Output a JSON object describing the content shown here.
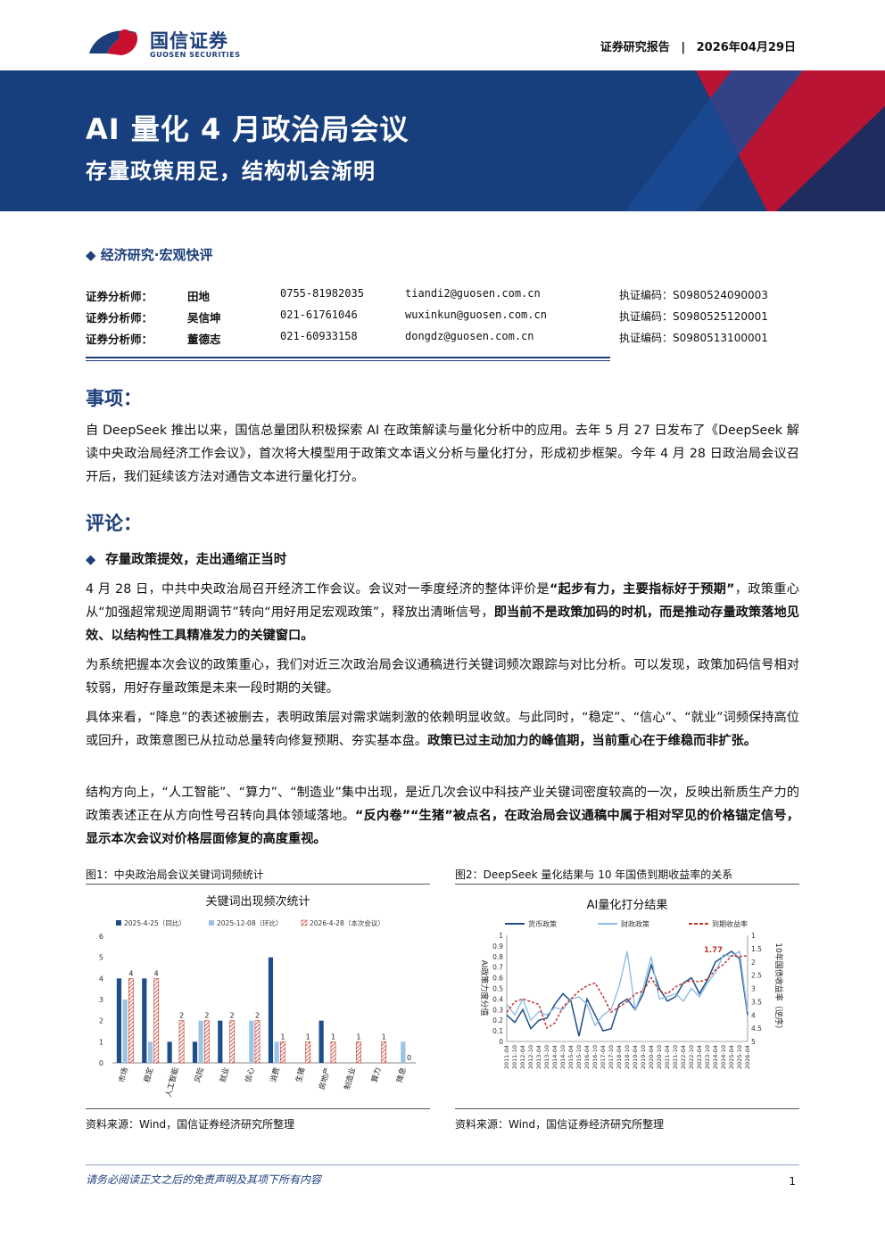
{
  "header": {
    "brand_cn": "国信证券",
    "brand_en": "GUOSEN SECURITIES",
    "report_type": "证券研究报告",
    "separator": "|",
    "date": "2026年04月29日"
  },
  "banner": {
    "title": "AI 量化 4 月政治局会议",
    "subtitle": "存量政策用足，结构机会渐明"
  },
  "section_tag": "◆ 经济研究·宏观快评",
  "analysts": [
    {
      "label": "证券分析师：",
      "name": "田地",
      "tel": "0755-81982035",
      "email": "tiandi2@guosen.com.cn",
      "cert": "执证编码：S0980524090003"
    },
    {
      "label": "证券分析师：",
      "name": "吴信坤",
      "tel": "021-61761046",
      "email": "wuxinkun@guosen.com.cn",
      "cert": "执证编码：S0980525120001"
    },
    {
      "label": "证券分析师：",
      "name": "董德志",
      "tel": "021-60933158",
      "email": "dongdz@guosen.com.cn",
      "cert": "执证编码：S0980513100001"
    }
  ],
  "sections": {
    "matter_heading": "事项：",
    "matter_text": "自 DeepSeek 推出以来，国信总量团队积极探索 AI 在政策解读与量化分析中的应用。去年 5 月 27 日发布了《DeepSeek 解读中央政治局经济工作会议》，首次将大模型用于政策文本语义分析与量化打分，形成初步框架。今年 4 月 28 日政治局会议召开后，我们延续该方法对通告文本进行量化打分。",
    "comment_heading": "评论：",
    "bullet1": "存量政策提效，走出通缩正当时",
    "p1_a": "4 月 28 日，中共中央政治局召开经济工作会议。会议对一季度经济的整体评价是",
    "p1_b": "“起步有力，主要指标好于预期”",
    "p1_c": "，政策重心从“加强超常规逆周期调节”转向“用好用足宏观政策”，释放出清晰信号，",
    "p1_d": "即当前不是政策加码的时机，而是推动存量政策落地见效、以结构性工具精准发力的关键窗口。",
    "p2": "为系统把握本次会议的政策重心，我们对近三次政治局会议通稿进行关键词频次跟踪与对比分析。可以发现，政策加码信号相对较弱，用好存量政策是未来一段时期的关键。",
    "p3_a": "具体来看，“降息”的表述被删去，表明政策层对需求端刺激的依赖明显收敛。与此同时，“稳定”、“信心”、“就业”词频保持高位或回升，政策意图已从拉动总量转向修复预期、夯实基本盘。",
    "p3_b": "政策已过主动加力的峰值期，当前重心在于维稳而非扩张。",
    "p4_a": "结构方向上，“人工智能”、“算力”、“制造业”集中出现，是近几次会议中科技产业关键词密度较高的一次，反映出新质生产力的政策表述正在从方向性号召转向具体领域落地。",
    "p4_b": "“反内卷”“生猪”被点名，在政治局会议通稿中属于相对罕见的价格锚定信号，显示本次会议对价格层面修复的高度重视。"
  },
  "figure1": {
    "caption": "图1：中央政治局会议关键词词频统计",
    "source": "资料来源：Wind，国信证券经济研究所整理",
    "colors": {
      "s1": "#1d4e89",
      "s2": "#9cc3e6",
      "s3": "#c0392b"
    }
  },
  "figure2": {
    "caption": "图2：DeepSeek 量化结果与 10 年国债到期收益率的关系",
    "source": "资料来源：Wind，国信证券经济研究所整理",
    "colors": {
      "s1": "#1d4e89",
      "s2": "#8fbde6",
      "s3": "#c0392b"
    }
  },
  "chart_data": [
    {
      "type": "bar",
      "title": "关键词出现频次统计",
      "categories": [
        "市场",
        "稳定",
        "人工智能",
        "风险",
        "就业",
        "信心",
        "消费",
        "生猪",
        "房地产",
        "制造业",
        "算力",
        "降息"
      ],
      "series": [
        {
          "name": "2025-4-25（同比）",
          "values": [
            4,
            4,
            1,
            1,
            2,
            0,
            5,
            0,
            2,
            0,
            0,
            0
          ]
        },
        {
          "name": "2025-12-08（环比）",
          "values": [
            3,
            1,
            0,
            2,
            0,
            2,
            1,
            0,
            0,
            0,
            0,
            1
          ]
        },
        {
          "name": "2026-4-28（本次会议）",
          "values": [
            4,
            4,
            2,
            2,
            2,
            2,
            1,
            1,
            1,
            1,
            1,
            0
          ]
        }
      ],
      "data_labels": [
        4,
        4,
        2,
        2,
        2,
        2,
        1,
        1,
        1,
        1,
        1,
        0
      ],
      "ylim": [
        0,
        6
      ],
      "yticks": [
        "0",
        "1",
        "2",
        "3",
        "4",
        "5",
        "6"
      ],
      "legend": "top"
    },
    {
      "type": "line",
      "title": "AI量化打分结果",
      "ylabel_left": "AI政策力度分值",
      "ylabel_right": "10年国债收益率（逆序）",
      "ylim_left": [
        0,
        1
      ],
      "ylim_right": [
        1,
        5
      ],
      "right_axis_inverted": true,
      "yticks_left": [
        "0",
        "0.1",
        "0.2",
        "0.3",
        "0.4",
        "0.5",
        "0.6",
        "0.7",
        "0.8",
        "0.9",
        "1"
      ],
      "yticks_right": [
        "1",
        "1.5",
        "2",
        "2.5",
        "3",
        "3.5",
        "4",
        "4.5",
        "5"
      ],
      "x": [
        "2011-04",
        "2011-10",
        "2012-04",
        "2012-10",
        "2013-04",
        "2013-10",
        "2014-04",
        "2014-10",
        "2015-04",
        "2015-10",
        "2016-04",
        "2016-10",
        "2017-04",
        "2017-10",
        "2018-04",
        "2018-10",
        "2019-04",
        "2019-10",
        "2020-04",
        "2020-10",
        "2021-04",
        "2021-10",
        "2022-04",
        "2022-10",
        "2023-04",
        "2023-10",
        "2024-04",
        "2024-10",
        "2025-04",
        "2025-10",
        "2026-04"
      ],
      "series": [
        {
          "name": "货币政策",
          "values": [
            0.25,
            0.18,
            0.3,
            0.12,
            0.2,
            0.22,
            0.35,
            0.45,
            0.38,
            0.05,
            0.4,
            0.25,
            0.1,
            0.12,
            0.35,
            0.4,
            0.3,
            0.45,
            0.72,
            0.5,
            0.38,
            0.42,
            0.55,
            0.6,
            0.45,
            0.58,
            0.75,
            0.8,
            0.85,
            0.78,
            0.25
          ]
        },
        {
          "name": "财政政策",
          "values": [
            0.35,
            0.25,
            0.4,
            0.2,
            0.28,
            0.25,
            0.32,
            0.3,
            0.4,
            0.42,
            0.35,
            0.15,
            0.25,
            0.3,
            0.52,
            0.85,
            0.3,
            0.5,
            0.8,
            0.4,
            0.42,
            0.45,
            0.38,
            0.5,
            0.42,
            0.55,
            0.65,
            0.82,
            0.8,
            0.85,
            0.28
          ]
        },
        {
          "name": "到期收益率",
          "values": [
            3.9,
            3.5,
            3.4,
            3.5,
            3.6,
            4.5,
            4.3,
            3.7,
            3.4,
            3.1,
            2.9,
            2.8,
            3.3,
            3.9,
            3.7,
            3.5,
            3.2,
            3.1,
            2.6,
            3.1,
            3.2,
            2.95,
            2.8,
            2.7,
            2.75,
            2.65,
            2.3,
            2.1,
            1.77,
            1.8,
            1.77
          ]
        }
      ],
      "annotation": "1.77",
      "legend": "top"
    }
  ],
  "footer": {
    "disclaimer": "请务必阅读正文之后的免责声明及其项下所有内容",
    "page": "1"
  }
}
